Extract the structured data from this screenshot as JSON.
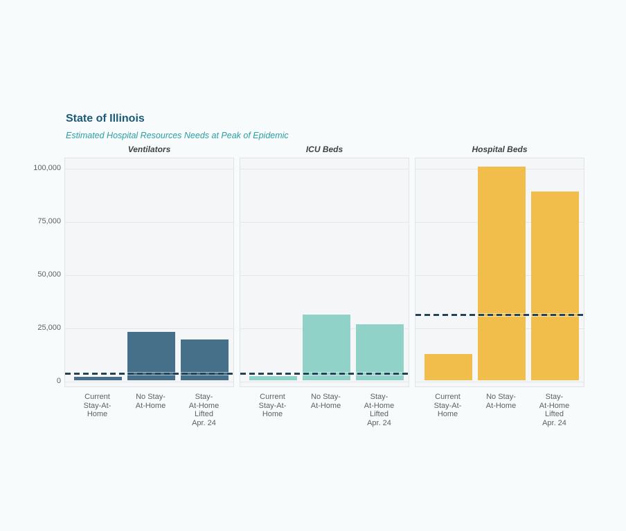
{
  "page": {
    "background": "#f7fbfc"
  },
  "header": {
    "title": "State of Illinois",
    "subtitle": "Estimated Hospital Resources Needs at Peak of Epidemic"
  },
  "chart_data": {
    "type": "bar",
    "title": "State of Illinois",
    "subtitle": "Estimated Hospital Resources Needs at Peak of Epidemic",
    "categories": [
      "Current Stay-At-Home",
      "No Stay-At-Home",
      "Stay-At-Home Lifted Apr. 24"
    ],
    "category_lines": [
      [
        "Current",
        "Stay-At-",
        "Home"
      ],
      [
        "No Stay-",
        "At-Home"
      ],
      [
        "Stay-",
        "At-Home",
        "Lifted",
        "Apr. 24"
      ]
    ],
    "panels": [
      {
        "label": "Ventilators",
        "color": "#46708a",
        "values": [
          1600,
          22700,
          19200
        ],
        "capacity": 3900
      },
      {
        "label": "ICU Beds",
        "color": "#90d1c8",
        "values": [
          2000,
          30800,
          26400
        ],
        "capacity": 3800
      },
      {
        "label": "Hospital Beds",
        "color": "#f2be4b",
        "values": [
          12300,
          100300,
          88600
        ],
        "capacity": 31500
      }
    ],
    "capacity_line": {
      "style": "dashed",
      "color": "#21435a"
    },
    "yticks": [
      0,
      25000,
      50000,
      75000,
      100000
    ],
    "ytick_labels": [
      "0",
      "25,000",
      "50,000",
      "75,000",
      "100,000"
    ],
    "ylim": [
      0,
      104900
    ],
    "xlabel": "",
    "ylabel": "",
    "grid": true,
    "legend": "none"
  },
  "colors": {
    "title": "#1d5876",
    "subtitle": "#2b9fa3",
    "panel_title": "#3d4245",
    "axis_text": "#5b6064",
    "gridline": "#e3e7ea",
    "panel_bg": "#f4f6f7",
    "panel_border": "#e0e4e7"
  }
}
